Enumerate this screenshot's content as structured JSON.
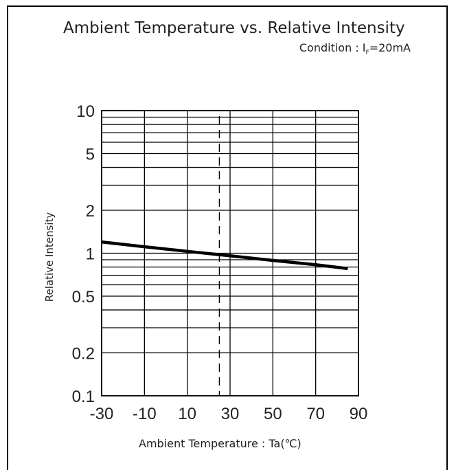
{
  "chart_data": {
    "type": "line",
    "title": "Ambient Temperature vs. Relative Intensity",
    "subtitle": {
      "prefix": "Condition : I",
      "subscript": "F",
      "suffix": "=20mA"
    },
    "xlabel": "Ambient Temperature : Ta(℃)",
    "ylabel": "Relative Intensity",
    "x_scale": "linear",
    "y_scale": "log",
    "xlim": [
      -30,
      90
    ],
    "ylim": [
      0.1,
      10
    ],
    "x_ticks": [
      -30,
      -10,
      10,
      30,
      50,
      70,
      90
    ],
    "x_tick_labels": [
      "-30",
      "-10",
      "10",
      "30",
      "50",
      "70",
      "90"
    ],
    "y_tick_values": [
      0.1,
      0.2,
      0.5,
      1,
      2,
      5,
      10
    ],
    "y_tick_labels": [
      "0.1",
      "0.2",
      "0.5",
      "1",
      "2",
      "5",
      "10"
    ],
    "y_gridlines": [
      0.1,
      0.2,
      0.3,
      0.4,
      0.5,
      0.6,
      0.7,
      0.8,
      0.9,
      1,
      2,
      3,
      4,
      5,
      6,
      7,
      8,
      9,
      10
    ],
    "grid": true,
    "reference_line": {
      "x": 25,
      "style": "dashed"
    },
    "series": [
      {
        "x": [
          -30,
          -10,
          10,
          30,
          50,
          70,
          85
        ],
        "y": [
          1.2,
          1.11,
          1.03,
          0.96,
          0.89,
          0.83,
          0.78
        ]
      }
    ]
  }
}
